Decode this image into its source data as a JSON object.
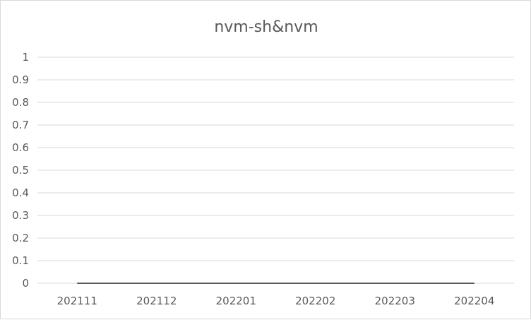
{
  "chart_data": {
    "type": "line",
    "title": "nvm-sh&nvm",
    "xlabel": "",
    "ylabel": "",
    "categories": [
      "202111",
      "202112",
      "202201",
      "202202",
      "202203",
      "202204"
    ],
    "series": [
      {
        "values": [
          0,
          0,
          0,
          0,
          0,
          0
        ]
      }
    ],
    "ylim": [
      0,
      1
    ],
    "yticks": [
      "0",
      "0.1",
      "0.2",
      "0.3",
      "0.4",
      "0.5",
      "0.6",
      "0.7",
      "0.8",
      "0.9",
      "1"
    ],
    "grid": true,
    "legend": "none",
    "colors": {
      "series": "#595959",
      "grid": "#d9d9d9",
      "text": "#595959"
    }
  }
}
